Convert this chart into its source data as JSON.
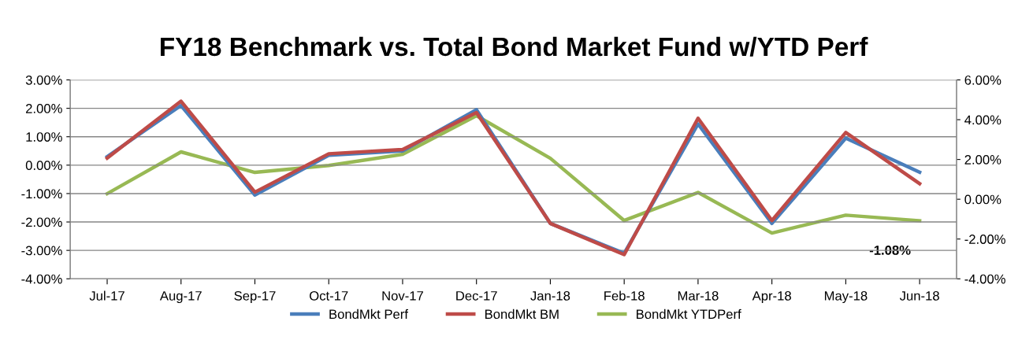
{
  "chart_data": {
    "type": "line",
    "title": "FY18 Benchmark vs. Total Bond Market Fund w/YTD Perf",
    "categories": [
      "Jul-17",
      "Aug-17",
      "Sep-17",
      "Oct-17",
      "Nov-17",
      "Dec-17",
      "Jan-18",
      "Feb-18",
      "Mar-18",
      "Apr-18",
      "May-18",
      "Jun-18"
    ],
    "series": [
      {
        "name": "BondMkt Perf",
        "color": "#4a7ebb",
        "values": [
          0.3,
          2.1,
          -1.05,
          0.35,
          0.5,
          1.95,
          -2.05,
          -3.1,
          1.45,
          -2.05,
          0.95,
          -0.25
        ]
      },
      {
        "name": "BondMkt BM",
        "color": "#be4b48",
        "values": [
          0.25,
          2.25,
          -0.95,
          0.4,
          0.55,
          1.85,
          -2.05,
          -3.15,
          1.65,
          -1.95,
          1.15,
          -0.65
        ]
      },
      {
        "name": "BondMkt YTDPerf",
        "color": "#98b954",
        "axis": "y2",
        "values": [
          0.28,
          2.38,
          1.35,
          1.7,
          2.26,
          4.2,
          2.06,
          -1.07,
          0.34,
          -1.7,
          -0.8,
          -1.08
        ],
        "value_labels": [
          null,
          null,
          null,
          null,
          null,
          null,
          null,
          null,
          null,
          null,
          null,
          "-1.08%"
        ]
      }
    ],
    "ylim": [
      -4,
      3
    ],
    "yticks": [
      {
        "value": -4,
        "label": "-4.00%"
      },
      {
        "value": -3,
        "label": "-3.00%"
      },
      {
        "value": -2,
        "label": "-2.00%"
      },
      {
        "value": -1,
        "label": "-1.00%"
      },
      {
        "value": 0,
        "label": "0.00%"
      },
      {
        "value": 1,
        "label": "1.00%"
      },
      {
        "value": 2,
        "label": "2.00%"
      },
      {
        "value": 3,
        "label": "3.00%"
      }
    ],
    "y2lim": [
      -4,
      6
    ],
    "y2ticks": [
      {
        "value": -4,
        "label": "-4.00%"
      },
      {
        "value": -2,
        "label": "-2.00%"
      },
      {
        "value": 0,
        "label": "0.00%"
      },
      {
        "value": 2,
        "label": "2.00%"
      },
      {
        "value": 4,
        "label": "4.00%"
      },
      {
        "value": 6,
        "label": "6.00%"
      }
    ],
    "grid": "y",
    "legend": "bottom",
    "marker": "none",
    "line_style": "solid"
  }
}
